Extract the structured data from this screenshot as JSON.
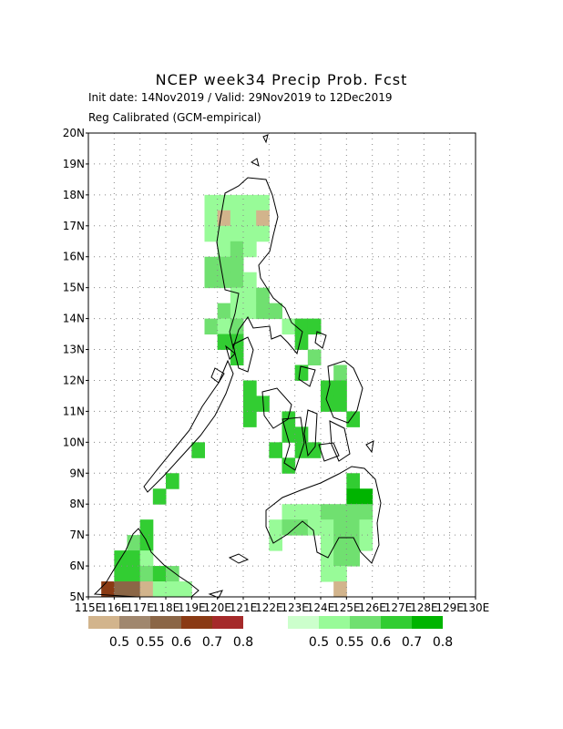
{
  "header": {
    "title": "NCEP week34 Precip Prob. Fcst",
    "init_line": "Init date: 14Nov2019 / Valid: 29Nov2019 to 12Dec2019",
    "calib_line": "Reg Calibrated (GCM-empirical)"
  },
  "map": {
    "lat_labels": [
      "5N",
      "6N",
      "7N",
      "8N",
      "9N",
      "10N",
      "11N",
      "12N",
      "13N",
      "14N",
      "15N",
      "16N",
      "17N",
      "18N",
      "19N",
      "20N"
    ],
    "lon_labels": [
      "115E",
      "116E",
      "117E",
      "118E",
      "119E",
      "120E",
      "121E",
      "122E",
      "123E",
      "124E",
      "125E",
      "126E",
      "127E",
      "128E",
      "129E",
      "130E"
    ],
    "lon_range": [
      115,
      130
    ],
    "lat_range": [
      5,
      20
    ],
    "grid": "dotted",
    "cells": [
      {
        "lon": 119.75,
        "lat": 17.75,
        "v": "w55"
      },
      {
        "lon": 120.25,
        "lat": 17.75,
        "v": "w55"
      },
      {
        "lon": 120.75,
        "lat": 17.75,
        "v": "w55"
      },
      {
        "lon": 119.75,
        "lat": 17.25,
        "v": "w55"
      },
      {
        "lon": 120.25,
        "lat": 17.25,
        "v": "d50"
      },
      {
        "lon": 120.75,
        "lat": 17.25,
        "v": "w55"
      },
      {
        "lon": 121.25,
        "lat": 17.25,
        "v": "w55"
      },
      {
        "lon": 121.25,
        "lat": 17.75,
        "v": "w55"
      },
      {
        "lon": 121.75,
        "lat": 17.75,
        "v": "w55"
      },
      {
        "lon": 121.75,
        "lat": 17.25,
        "v": "d50"
      },
      {
        "lon": 119.75,
        "lat": 16.75,
        "v": "w55"
      },
      {
        "lon": 120.25,
        "lat": 16.75,
        "v": "w55"
      },
      {
        "lon": 120.75,
        "lat": 16.75,
        "v": "w55"
      },
      {
        "lon": 121.25,
        "lat": 16.75,
        "v": "w55"
      },
      {
        "lon": 121.75,
        "lat": 16.75,
        "v": "w55"
      },
      {
        "lon": 120.25,
        "lat": 16.25,
        "v": "w55"
      },
      {
        "lon": 120.75,
        "lat": 16.25,
        "v": "w60"
      },
      {
        "lon": 121.25,
        "lat": 16.25,
        "v": "w55"
      },
      {
        "lon": 119.75,
        "lat": 15.75,
        "v": "w60"
      },
      {
        "lon": 120.25,
        "lat": 15.75,
        "v": "w60"
      },
      {
        "lon": 120.75,
        "lat": 15.75,
        "v": "w60"
      },
      {
        "lon": 119.75,
        "lat": 15.25,
        "v": "w60"
      },
      {
        "lon": 120.25,
        "lat": 15.25,
        "v": "w60"
      },
      {
        "lon": 120.75,
        "lat": 15.25,
        "v": "w60"
      },
      {
        "lon": 121.25,
        "lat": 15.25,
        "v": "w55"
      },
      {
        "lon": 120.75,
        "lat": 14.75,
        "v": "w55"
      },
      {
        "lon": 121.25,
        "lat": 14.75,
        "v": "w55"
      },
      {
        "lon": 121.75,
        "lat": 14.75,
        "v": "w60"
      },
      {
        "lon": 120.25,
        "lat": 14.25,
        "v": "w60"
      },
      {
        "lon": 120.75,
        "lat": 14.25,
        "v": "w55"
      },
      {
        "lon": 121.25,
        "lat": 14.25,
        "v": "w55"
      },
      {
        "lon": 121.75,
        "lat": 14.25,
        "v": "w60"
      },
      {
        "lon": 122.25,
        "lat": 14.25,
        "v": "w60"
      },
      {
        "lon": 119.75,
        "lat": 13.75,
        "v": "w60"
      },
      {
        "lon": 120.25,
        "lat": 13.75,
        "v": "w55"
      },
      {
        "lon": 120.75,
        "lat": 13.75,
        "v": "w60"
      },
      {
        "lon": 122.75,
        "lat": 13.75,
        "v": "w55"
      },
      {
        "lon": 123.25,
        "lat": 13.75,
        "v": "w70"
      },
      {
        "lon": 123.75,
        "lat": 13.75,
        "v": "w70"
      },
      {
        "lon": 120.25,
        "lat": 13.25,
        "v": "w70"
      },
      {
        "lon": 120.75,
        "lat": 13.25,
        "v": "w70"
      },
      {
        "lon": 123.25,
        "lat": 13.25,
        "v": "w70"
      },
      {
        "lon": 120.75,
        "lat": 12.75,
        "v": "w70"
      },
      {
        "lon": 123.75,
        "lat": 12.75,
        "v": "w60"
      },
      {
        "lon": 123.25,
        "lat": 12.25,
        "v": "w70"
      },
      {
        "lon": 124.75,
        "lat": 12.25,
        "v": "w60"
      },
      {
        "lon": 121.25,
        "lat": 11.75,
        "v": "w70"
      },
      {
        "lon": 124.25,
        "lat": 11.75,
        "v": "w70"
      },
      {
        "lon": 124.75,
        "lat": 11.75,
        "v": "w70"
      },
      {
        "lon": 121.25,
        "lat": 11.25,
        "v": "w70"
      },
      {
        "lon": 121.75,
        "lat": 11.25,
        "v": "w70"
      },
      {
        "lon": 124.25,
        "lat": 11.25,
        "v": "w70"
      },
      {
        "lon": 124.75,
        "lat": 11.25,
        "v": "w70"
      },
      {
        "lon": 121.25,
        "lat": 10.75,
        "v": "w70"
      },
      {
        "lon": 122.75,
        "lat": 10.75,
        "v": "w70"
      },
      {
        "lon": 125.25,
        "lat": 10.75,
        "v": "w70"
      },
      {
        "lon": 122.75,
        "lat": 10.25,
        "v": "w70"
      },
      {
        "lon": 123.25,
        "lat": 10.25,
        "v": "w70"
      },
      {
        "lon": 119.25,
        "lat": 9.75,
        "v": "w70"
      },
      {
        "lon": 122.25,
        "lat": 9.75,
        "v": "w70"
      },
      {
        "lon": 123.25,
        "lat": 9.75,
        "v": "w70"
      },
      {
        "lon": 123.75,
        "lat": 9.75,
        "v": "w70"
      },
      {
        "lon": 122.75,
        "lat": 9.25,
        "v": "w70"
      },
      {
        "lon": 118.25,
        "lat": 8.75,
        "v": "w70"
      },
      {
        "lon": 125.25,
        "lat": 8.75,
        "v": "w70"
      },
      {
        "lon": 117.75,
        "lat": 8.25,
        "v": "w70"
      },
      {
        "lon": 125.25,
        "lat": 8.25,
        "v": "w80"
      },
      {
        "lon": 125.75,
        "lat": 8.25,
        "v": "w80"
      },
      {
        "lon": 122.75,
        "lat": 7.75,
        "v": "w55"
      },
      {
        "lon": 123.25,
        "lat": 7.75,
        "v": "w55"
      },
      {
        "lon": 123.75,
        "lat": 7.75,
        "v": "w55"
      },
      {
        "lon": 124.25,
        "lat": 7.75,
        "v": "w60"
      },
      {
        "lon": 124.75,
        "lat": 7.75,
        "v": "w60"
      },
      {
        "lon": 125.25,
        "lat": 7.75,
        "v": "w60"
      },
      {
        "lon": 125.75,
        "lat": 7.75,
        "v": "w60"
      },
      {
        "lon": 122.25,
        "lat": 7.25,
        "v": "w55"
      },
      {
        "lon": 122.75,
        "lat": 7.25,
        "v": "w60"
      },
      {
        "lon": 123.25,
        "lat": 7.25,
        "v": "w60"
      },
      {
        "lon": 123.75,
        "lat": 7.25,
        "v": "w55"
      },
      {
        "lon": 124.25,
        "lat": 7.25,
        "v": "w55"
      },
      {
        "lon": 124.75,
        "lat": 7.25,
        "v": "w60"
      },
      {
        "lon": 125.25,
        "lat": 7.25,
        "v": "w60"
      },
      {
        "lon": 125.75,
        "lat": 7.25,
        "v": "w55"
      },
      {
        "lon": 122.25,
        "lat": 6.75,
        "v": "w55"
      },
      {
        "lon": 124.25,
        "lat": 6.75,
        "v": "w55"
      },
      {
        "lon": 124.75,
        "lat": 6.75,
        "v": "w60"
      },
      {
        "lon": 125.25,
        "lat": 6.75,
        "v": "w60"
      },
      {
        "lon": 125.75,
        "lat": 6.75,
        "v": "w55"
      },
      {
        "lon": 124.25,
        "lat": 6.25,
        "v": "w55"
      },
      {
        "lon": 124.75,
        "lat": 6.25,
        "v": "w60"
      },
      {
        "lon": 125.25,
        "lat": 6.25,
        "v": "w60"
      },
      {
        "lon": 124.25,
        "lat": 5.75,
        "v": "w55"
      },
      {
        "lon": 124.75,
        "lat": 5.75,
        "v": "w55"
      },
      {
        "lon": 124.75,
        "lat": 5.25,
        "v": "d50"
      },
      {
        "lon": 117.25,
        "lat": 7.25,
        "v": "w70"
      },
      {
        "lon": 116.75,
        "lat": 6.75,
        "v": "w60"
      },
      {
        "lon": 117.25,
        "lat": 6.75,
        "v": "w70"
      },
      {
        "lon": 116.25,
        "lat": 6.25,
        "v": "w70"
      },
      {
        "lon": 116.75,
        "lat": 6.25,
        "v": "w70"
      },
      {
        "lon": 117.25,
        "lat": 6.25,
        "v": "w55"
      },
      {
        "lon": 116.25,
        "lat": 5.75,
        "v": "w70"
      },
      {
        "lon": 116.75,
        "lat": 5.75,
        "v": "w70"
      },
      {
        "lon": 117.25,
        "lat": 5.75,
        "v": "w60"
      },
      {
        "lon": 117.75,
        "lat": 5.75,
        "v": "w70"
      },
      {
        "lon": 118.25,
        "lat": 5.75,
        "v": "w60"
      },
      {
        "lon": 115.75,
        "lat": 5.25,
        "v": "d70"
      },
      {
        "lon": 116.25,
        "lat": 5.25,
        "v": "d60"
      },
      {
        "lon": 116.75,
        "lat": 5.25,
        "v": "d60"
      },
      {
        "lon": 117.25,
        "lat": 5.25,
        "v": "d50"
      },
      {
        "lon": 117.75,
        "lat": 5.25,
        "v": "w55"
      },
      {
        "lon": 118.25,
        "lat": 5.25,
        "v": "w55"
      },
      {
        "lon": 118.75,
        "lat": 5.25,
        "v": "w55"
      }
    ]
  },
  "legend": {
    "dry": {
      "labels": [
        "0.5",
        "0.55",
        "0.6",
        "0.7",
        "0.8"
      ],
      "colors": [
        "#d2b48c",
        "#a0876e",
        "#8b6646",
        "#8a3a14",
        "#a52a2a"
      ]
    },
    "wet": {
      "labels": [
        "0.5",
        "0.55",
        "0.6",
        "0.7",
        "0.8"
      ],
      "colors": [
        "#ccffcc",
        "#98fb98",
        "#70e070",
        "#32cd32",
        "#00b400"
      ]
    },
    "cell_colors": {
      "w50": "#ccffcc",
      "w55": "#98fb98",
      "w60": "#70e070",
      "w70": "#32cd32",
      "w80": "#00b400",
      "d50": "#d2b48c",
      "d55": "#a0876e",
      "d60": "#8b6646",
      "d70": "#8a3a14",
      "d80": "#a52a2a"
    }
  }
}
